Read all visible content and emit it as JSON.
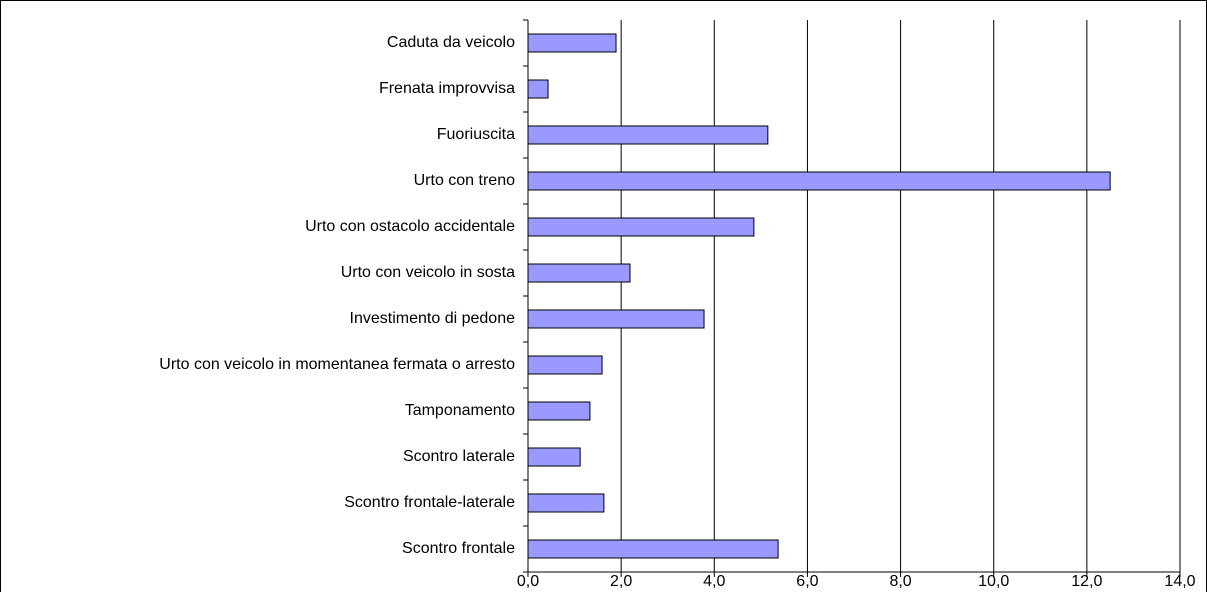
{
  "chart_data": {
    "type": "barh",
    "categories": [
      "Caduta da veicolo",
      "Frenata improvvisa",
      "Fuoriuscita",
      "Urto con treno",
      "Urto con ostacolo accidentale",
      "Urto con veicolo in sosta",
      "Investimento di pedone",
      "Urto con veicolo in momentanea fermata o arresto",
      "Tamponamento",
      "Scontro laterale",
      "Scontro frontale-laterale",
      "Scontro frontale"
    ],
    "values": [
      1.89,
      0.43,
      5.15,
      12.5,
      4.85,
      2.19,
      3.78,
      1.59,
      1.33,
      1.12,
      1.63,
      5.37
    ],
    "color": "#9999ff",
    "xlim": [
      0,
      14
    ],
    "xticks": [
      {
        "value": 0,
        "label": "0,0"
      },
      {
        "value": 2,
        "label": "2,0"
      },
      {
        "value": 4,
        "label": "4,0"
      },
      {
        "value": 6,
        "label": "6,0"
      },
      {
        "value": 8,
        "label": "8,0"
      },
      {
        "value": 10,
        "label": "10,0"
      },
      {
        "value": 12,
        "label": "12,0"
      },
      {
        "value": 14,
        "label": "14,0"
      }
    ],
    "grid": true
  }
}
